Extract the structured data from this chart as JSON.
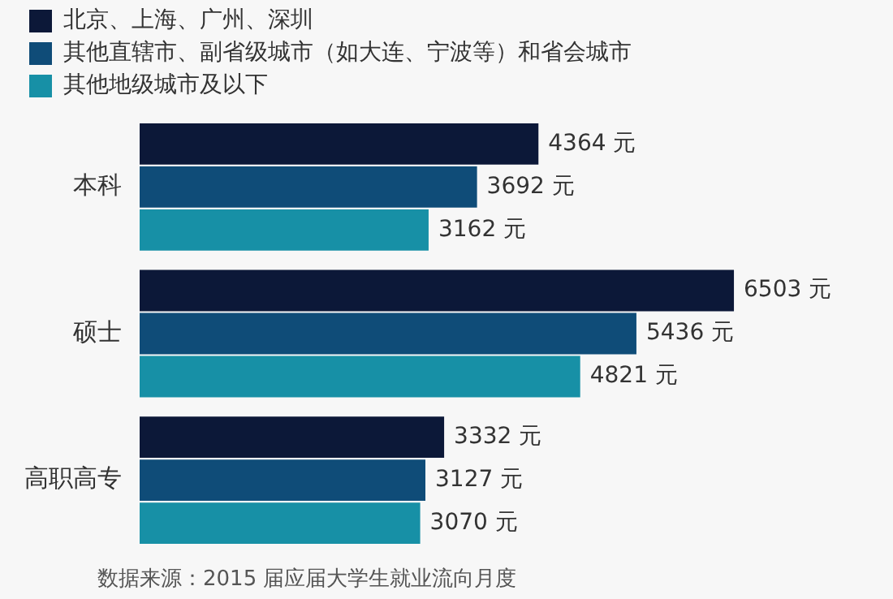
{
  "chart_data": {
    "type": "bar",
    "orientation": "horizontal",
    "categories": [
      "本科",
      "硕士",
      "高职高专"
    ],
    "series": [
      {
        "name": "北京、上海、广州、深圳",
        "color": "#0c1838",
        "values": [
          4364,
          6503,
          3332
        ],
        "value_labels": [
          "4364 元",
          "6503 元",
          "3332 元"
        ]
      },
      {
        "name": "其他直辖市、副省级城市（如大连、宁波等）和省会城市",
        "color": "#0f4c78",
        "values": [
          3692,
          5436,
          3127
        ],
        "value_labels": [
          "3692 元",
          "5436 元",
          "3127 元"
        ]
      },
      {
        "name": "其他地级城市及以下",
        "color": "#1790a6",
        "values": [
          3162,
          4821,
          3070
        ],
        "value_labels": [
          "3162 元",
          "4821 元",
          "3070 元"
        ]
      }
    ],
    "tick_labels": "y",
    "grid": false,
    "legend": "top left",
    "annotations": [
      "数据来源：2015 届应届大学生就业流向月度"
    ]
  }
}
